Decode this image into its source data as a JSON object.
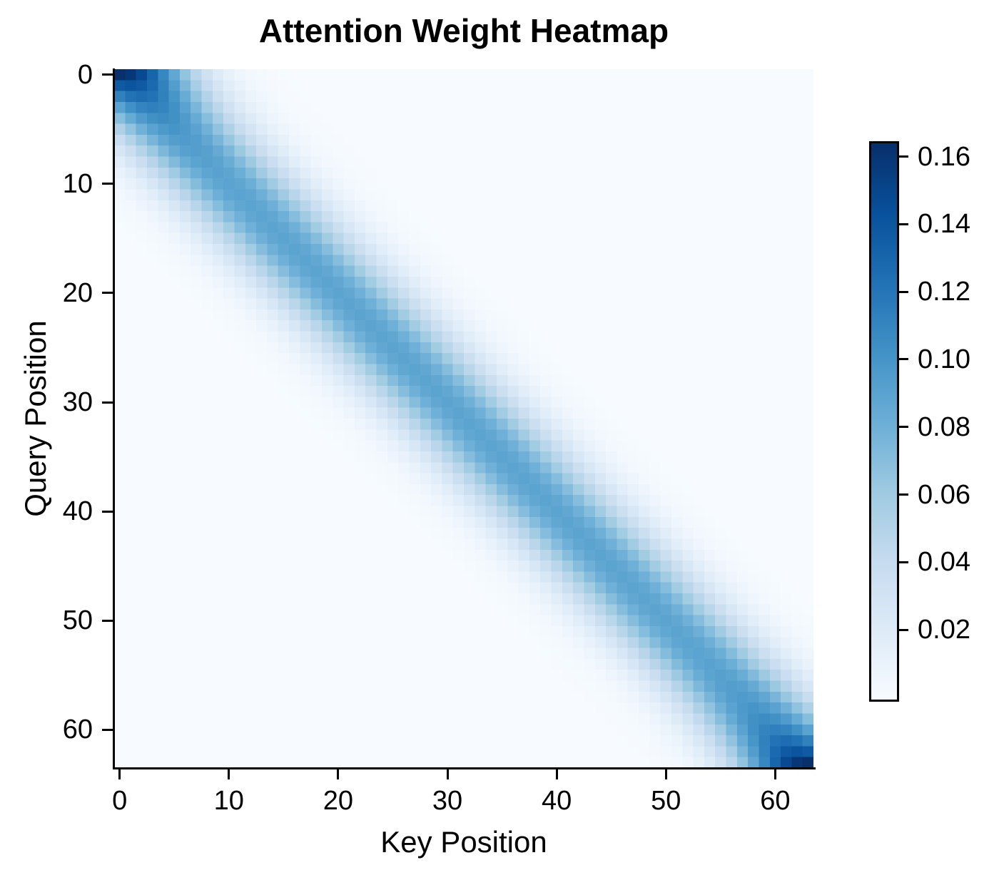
{
  "figure": {
    "background_color": "#ffffff",
    "text_color": "#000000"
  },
  "chart_data": {
    "type": "heatmap",
    "title": "Attention Weight Heatmap",
    "xlabel": "Key Position",
    "ylabel": "Query Position",
    "n_rows": 64,
    "n_cols": 64,
    "x_tick_values": [
      0,
      10,
      20,
      30,
      40,
      50,
      60
    ],
    "y_tick_values": [
      0,
      10,
      20,
      30,
      40,
      50,
      60
    ],
    "grid": false,
    "colorbar": {
      "tick_values": [
        0.02,
        0.04,
        0.06,
        0.08,
        0.1,
        0.12,
        0.14,
        0.16
      ],
      "tick_decimals": 2,
      "vmin": 0.0,
      "vmax": 0.1646,
      "position": "right"
    },
    "colormap": {
      "name": "Blues",
      "stops": [
        "#f7fbff",
        "#deebf7",
        "#c6dbef",
        "#9ecae1",
        "#6baed6",
        "#4292c6",
        "#2171b5",
        "#08519c",
        "#08306b"
      ]
    },
    "pattern": {
      "description": "Gaussian attention band centered on the main diagonal; each query row is normalized to sum to 1, so edge rows (fewer neighbors) peak darker than center rows",
      "formula": "weight[q][k] = exp(-(q-k)^2 / (2*sigma^2)) / sum_k exp(-(q-k)^2 / (2*sigma^2))",
      "sigma": 4.45,
      "peak_value_center_rows": 0.09,
      "peak_value_corner_cells": 0.165,
      "min_value": 0.0
    }
  }
}
